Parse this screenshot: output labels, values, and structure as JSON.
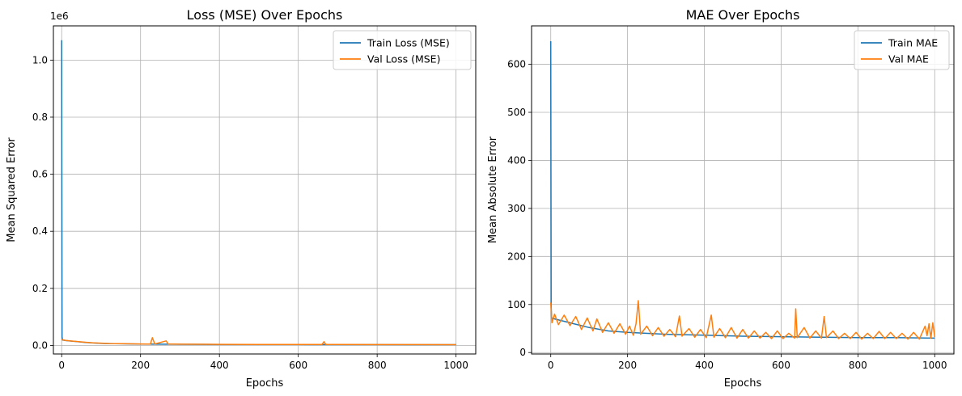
{
  "chart_data": [
    {
      "type": "line",
      "title": "Loss (MSE) Over Epochs",
      "xlabel": "Epochs",
      "ylabel": "Mean Squared Error",
      "y_offset_text": "1e6",
      "xlim": [
        -21,
        1050
      ],
      "ylim": [
        -30000,
        1120000
      ],
      "xticks": [
        0,
        200,
        400,
        600,
        800,
        1000
      ],
      "xtick_labels": [
        "0",
        "200",
        "400",
        "600",
        "800",
        "1000"
      ],
      "yticks": [
        0,
        200000,
        400000,
        600000,
        800000,
        1000000
      ],
      "ytick_labels": [
        "0.0",
        "0.2",
        "0.4",
        "0.6",
        "0.8",
        "1.0"
      ],
      "grid": true,
      "legend_position": "top-right",
      "series": [
        {
          "name": "Train Loss (MSE)",
          "color": "#1f77b4",
          "points": [
            [
              0,
              1070000
            ],
            [
              1,
              30000
            ],
            [
              2,
              19000
            ],
            [
              10,
              17000
            ],
            [
              20,
              15500
            ],
            [
              40,
              13000
            ],
            [
              60,
              10500
            ],
            [
              80,
              8500
            ],
            [
              100,
              7200
            ],
            [
              150,
              5600
            ],
            [
              200,
              4800
            ],
            [
              300,
              3900
            ],
            [
              400,
              3500
            ],
            [
              500,
              3200
            ],
            [
              600,
              3000
            ],
            [
              700,
              2900
            ],
            [
              800,
              2800
            ],
            [
              900,
              2700
            ],
            [
              1000,
              2600
            ]
          ]
        },
        {
          "name": "Val Loss (MSE)",
          "color": "#ff7f0e",
          "points": [
            [
              0,
              20000
            ],
            [
              10,
              17500
            ],
            [
              20,
              16000
            ],
            [
              40,
              13500
            ],
            [
              60,
              11000
            ],
            [
              80,
              9000
            ],
            [
              100,
              8000
            ],
            [
              120,
              6500
            ],
            [
              150,
              6000
            ],
            [
              200,
              5200
            ],
            [
              225,
              4800
            ],
            [
              230,
              27000
            ],
            [
              236,
              5000
            ],
            [
              265,
              16000
            ],
            [
              270,
              5000
            ],
            [
              300,
              4300
            ],
            [
              400,
              3800
            ],
            [
              500,
              3400
            ],
            [
              600,
              3100
            ],
            [
              660,
              3200
            ],
            [
              665,
              13000
            ],
            [
              670,
              3100
            ],
            [
              700,
              3000
            ],
            [
              800,
              2900
            ],
            [
              900,
              2800
            ],
            [
              1000,
              2700
            ]
          ]
        }
      ]
    },
    {
      "type": "line",
      "title": "MAE Over Epochs",
      "xlabel": "Epochs",
      "ylabel": "Mean Absolute Error",
      "xlim": [
        -50,
        1050
      ],
      "ylim": [
        -3,
        680
      ],
      "xticks": [
        0,
        200,
        400,
        600,
        800,
        1000
      ],
      "xtick_labels": [
        "0",
        "200",
        "400",
        "600",
        "800",
        "1000"
      ],
      "yticks": [
        0,
        100,
        200,
        300,
        400,
        500,
        600
      ],
      "ytick_labels": [
        "0",
        "100",
        "200",
        "300",
        "400",
        "500",
        "600"
      ],
      "grid": true,
      "legend_position": "top-right",
      "series": [
        {
          "name": "Train MAE",
          "color": "#1f77b4",
          "points": [
            [
              0,
              648
            ],
            [
              1,
              100
            ],
            [
              2,
              72
            ],
            [
              10,
              70
            ],
            [
              30,
              66
            ],
            [
              60,
              60
            ],
            [
              100,
              52
            ],
            [
              150,
              45
            ],
            [
              200,
              42
            ],
            [
              300,
              38
            ],
            [
              400,
              36
            ],
            [
              500,
              34
            ],
            [
              600,
              33
            ],
            [
              700,
              32
            ],
            [
              800,
              31
            ],
            [
              900,
              31
            ],
            [
              1000,
              30
            ]
          ]
        },
        {
          "name": "Val MAE",
          "color": "#ff7f0e",
          "points": [
            [
              0,
              104
            ],
            [
              3,
              62
            ],
            [
              10,
              80
            ],
            [
              20,
              58
            ],
            [
              35,
              78
            ],
            [
              50,
              56
            ],
            [
              65,
              75
            ],
            [
              80,
              48
            ],
            [
              95,
              72
            ],
            [
              110,
              45
            ],
            [
              120,
              70
            ],
            [
              135,
              42
            ],
            [
              150,
              62
            ],
            [
              165,
              40
            ],
            [
              180,
              60
            ],
            [
              195,
              38
            ],
            [
              205,
              55
            ],
            [
              215,
              36
            ],
            [
              222,
              60
            ],
            [
              228,
              108
            ],
            [
              234,
              38
            ],
            [
              250,
              55
            ],
            [
              265,
              35
            ],
            [
              280,
              52
            ],
            [
              295,
              34
            ],
            [
              310,
              48
            ],
            [
              325,
              33
            ],
            [
              335,
              76
            ],
            [
              342,
              34
            ],
            [
              360,
              50
            ],
            [
              375,
              32
            ],
            [
              390,
              48
            ],
            [
              405,
              31
            ],
            [
              418,
              78
            ],
            [
              425,
              32
            ],
            [
              440,
              50
            ],
            [
              455,
              31
            ],
            [
              470,
              52
            ],
            [
              485,
              30
            ],
            [
              500,
              48
            ],
            [
              515,
              30
            ],
            [
              530,
              45
            ],
            [
              545,
              30
            ],
            [
              560,
              42
            ],
            [
              575,
              29
            ],
            [
              590,
              45
            ],
            [
              605,
              29
            ],
            [
              620,
              40
            ],
            [
              635,
              30
            ],
            [
              638,
              91
            ],
            [
              642,
              31
            ],
            [
              660,
              52
            ],
            [
              675,
              30
            ],
            [
              690,
              45
            ],
            [
              705,
              30
            ],
            [
              712,
              75
            ],
            [
              718,
              31
            ],
            [
              735,
              45
            ],
            [
              750,
              29
            ],
            [
              765,
              40
            ],
            [
              780,
              29
            ],
            [
              795,
              42
            ],
            [
              810,
              28
            ],
            [
              825,
              40
            ],
            [
              840,
              29
            ],
            [
              855,
              44
            ],
            [
              870,
              29
            ],
            [
              885,
              42
            ],
            [
              900,
              29
            ],
            [
              915,
              40
            ],
            [
              930,
              28
            ],
            [
              945,
              42
            ],
            [
              960,
              28
            ],
            [
              975,
              55
            ],
            [
              980,
              35
            ],
            [
              985,
              60
            ],
            [
              990,
              30
            ],
            [
              995,
              62
            ],
            [
              1000,
              32
            ]
          ]
        }
      ]
    }
  ]
}
